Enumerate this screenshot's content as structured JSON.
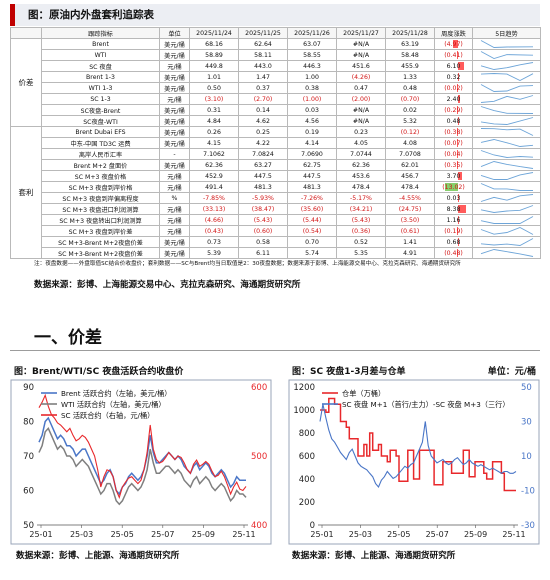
{
  "header": {
    "title": "图：原油内外盘套利追踪表"
  },
  "table": {
    "columns": [
      "跟踪指标",
      "单位",
      "2025/11/24",
      "2025/11/25",
      "2025/11/26",
      "2025/11/27",
      "2025/11/28",
      "周度涨跌",
      "5日趋势"
    ],
    "groups": {
      "price": "价差",
      "arb": "套利"
    },
    "rows": [
      {
        "name": "Brent",
        "unit": "美元/桶",
        "v": [
          "68.16",
          "62.64",
          "63.07",
          "#N/A",
          "63.19"
        ],
        "wow": "(4.97)",
        "wow_pct": -4.97
      },
      {
        "name": "WTI",
        "unit": "美元/桶",
        "v": [
          "58.89",
          "58.11",
          "58.55",
          "#N/A",
          "58.48"
        ],
        "wow": "(0.41)",
        "wow_pct": -0.41
      },
      {
        "name": "SC 夜盘",
        "unit": "元/桶",
        "v": [
          "449.8",
          "443.0",
          "446.3",
          "451.6",
          "455.9"
        ],
        "wow": "6.10",
        "wow_pct": 6.1
      },
      {
        "name": "Brent 1-3",
        "unit": "美元/桶",
        "v": [
          "1.01",
          "1.47",
          "1.00",
          "(4.26)",
          "1.33"
        ],
        "wow": "0.32",
        "wow_pct": 0.32
      },
      {
        "name": "WTI 1-3",
        "unit": "美元/桶",
        "v": [
          "0.50",
          "0.37",
          "0.38",
          "0.47",
          "0.48"
        ],
        "wow": "(0.02)",
        "wow_pct": -0.02
      },
      {
        "name": "SC 1-3",
        "unit": "元/桶",
        "v": [
          "(3.10)",
          "(2.70)",
          "(1.00)",
          "(2.00)",
          "(0.70)"
        ],
        "wow": "2.40",
        "wow_pct": 2.4
      },
      {
        "name": "SC夜盘-Brent",
        "unit": "美元/桶",
        "v": [
          "0.31",
          "0.14",
          "0.03",
          "#N/A",
          "0.02"
        ],
        "wow": "(0.29)",
        "wow_pct": -0.29
      },
      {
        "name": "SC夜盘-WTI",
        "unit": "美元/桶",
        "v": [
          "4.84",
          "4.62",
          "4.56",
          "#N/A",
          "5.32"
        ],
        "wow": "0.48",
        "wow_pct": 0.48
      },
      {
        "name": "Brent Dubai EFS",
        "unit": "美元/桶",
        "v": [
          "0.26",
          "0.25",
          "0.19",
          "0.23",
          "(0.12)"
        ],
        "wow": "(0.38)",
        "wow_pct": -0.38
      },
      {
        "name": "中东-中国 TD3C 运费",
        "unit": "美元/桶",
        "v": [
          "4.15",
          "4.22",
          "4.14",
          "4.05",
          "4.08"
        ],
        "wow": "(0.07)",
        "wow_pct": -0.07
      },
      {
        "name": "离岸人民币汇率",
        "unit": "-",
        "v": [
          "7.1062",
          "7.0824",
          "7.0690",
          "7.0744",
          "7.0708"
        ],
        "wow": "(0.04)",
        "wow_pct": -0.04
      },
      {
        "name": "Brent M+2 盘面价",
        "unit": "美元/桶",
        "v": [
          "62.36",
          "63.27",
          "62.75",
          "62.36",
          "62.01"
        ],
        "wow": "(0.35)",
        "wow_pct": -0.35
      },
      {
        "name": "SC M+3 夜盘价格",
        "unit": "元/桶",
        "v": [
          "452.9",
          "447.5",
          "447.5",
          "453.6",
          "456.7"
        ],
        "wow": "3.70",
        "wow_pct": 3.7
      },
      {
        "name": "SC M+3 夜盘到岸价格",
        "unit": "元/桶",
        "v": [
          "491.4",
          "481.3",
          "481.3",
          "478.4",
          "478.4"
        ],
        "wow": "(13.02)",
        "wow_pct": -13.02
      },
      {
        "name": "SC M+3 夜盘到岸偏离程度",
        "unit": "%",
        "v": [
          "-7.85%",
          "-5.93%",
          "-7.26%",
          "-5.17%",
          "-4.55%"
        ],
        "wow": "0.03",
        "wow_pct": 0.03
      },
      {
        "name": "SC M+3 夜盘进口利润测算",
        "unit": "元/桶",
        "v": [
          "(33.13)",
          "(38.47)",
          "(35.60)",
          "(34.21)",
          "(24.75)"
        ],
        "wow": "8.38",
        "wow_pct": 8.38
      },
      {
        "name": "SC M+3 夜盘转出口利润测算",
        "unit": "元/桶",
        "v": [
          "(4.66)",
          "(5.43)",
          "(5.44)",
          "(5.43)",
          "(3.50)"
        ],
        "wow": "1.16",
        "wow_pct": 1.16
      },
      {
        "name": "SC M+3 夜盘到岸价差",
        "unit": "元/桶",
        "v": [
          "(0.43)",
          "(0.60)",
          "(0.54)",
          "(0.36)",
          "(0.61)"
        ],
        "wow": "(0.19)",
        "wow_pct": -0.19
      },
      {
        "name": "SC M+3-Brent M+2夜盘价差",
        "unit": "美元/桶",
        "v": [
          "0.73",
          "0.58",
          "0.70",
          "0.52",
          "1.41"
        ],
        "wow": "0.68",
        "wow_pct": 0.68
      },
      {
        "name": "SC M+3-Brent M+2夜盘价差",
        "unit": "美元/桶",
        "v": [
          "5.39",
          "6.11",
          "5.74",
          "5.35",
          "4.91"
        ],
        "wow": "(0.48)",
        "wow_pct": -0.48
      }
    ]
  },
  "footnote": "注：夜盘数据——外盘取值SC结合价收盘价；套利数据——SC与Brent均当日取值是2：30夜盘数据；数据来源于彭博、上海能源交易中心、克拉克森研究、海通期货研究所",
  "source_top": "数据来源：彭博、上海能源交易中心、克拉克森研究、海通期货研究所",
  "section_heading": "一、价差",
  "charts": {
    "left_title": "图：Brent/WTI/SC 夜盘活跃合约收盘价",
    "right_title": "图：SC 夜盘1-3月差与仓单",
    "right_unit": "单位：元/桶",
    "left_source": "数据来源：彭博、上能源、海通期货研究所",
    "right_source": "数据来源：彭博、上能源、海通期货研究所"
  },
  "chart_data": [
    {
      "type": "line",
      "legend_position": "top-left",
      "x_ticks": [
        "25-01",
        "25-03",
        "25-05",
        "25-07",
        "25-09",
        "25-11"
      ],
      "y_left": {
        "range": [
          50,
          90
        ],
        "ticks": [
          50,
          60,
          70,
          80,
          90
        ]
      },
      "y_right": {
        "range": [
          400,
          600
        ],
        "ticks": [
          400,
          500,
          600
        ]
      },
      "series": [
        {
          "name": "Brent 活跃合约（左轴，美元/桶）",
          "axis": "left",
          "color": "#4a76c7",
          "values": [
            74,
            76,
            80,
            81,
            79,
            77,
            75,
            76,
            75,
            73,
            73,
            72,
            70,
            71,
            72,
            72,
            70,
            68,
            66,
            64,
            62,
            63,
            65,
            66,
            64,
            60,
            59,
            61,
            62,
            64,
            65,
            64,
            63,
            64,
            66,
            70,
            76,
            71,
            68,
            68,
            69,
            70,
            71,
            70,
            69,
            70,
            69,
            67,
            66,
            65,
            67,
            68,
            66,
            67,
            68,
            67,
            65,
            64,
            65,
            66,
            65,
            63,
            61,
            62,
            64,
            63,
            63,
            63
          ]
        },
        {
          "name": "WTI 活跃合约（左轴，美元/桶）",
          "axis": "left",
          "color": "#7f7f7f",
          "values": [
            71,
            73,
            77,
            78,
            76,
            74,
            72,
            73,
            72,
            70,
            70,
            69,
            67,
            68,
            69,
            68,
            67,
            65,
            63,
            61,
            59,
            60,
            62,
            62,
            60,
            57,
            56,
            57,
            59,
            61,
            62,
            61,
            60,
            61,
            63,
            66,
            72,
            68,
            65,
            65,
            66,
            67,
            67,
            66,
            65,
            66,
            65,
            63,
            62,
            61,
            63,
            64,
            62,
            63,
            64,
            63,
            61,
            60,
            61,
            62,
            61,
            59,
            57,
            58,
            60,
            59,
            59,
            58
          ]
        },
        {
          "name": "SC 活跃合约（右轴，元/桶）",
          "axis": "right",
          "color": "#e8282b",
          "values": [
            570,
            578,
            588,
            572,
            560,
            555,
            548,
            545,
            540,
            535,
            540,
            530,
            522,
            525,
            530,
            527,
            520,
            510,
            500,
            480,
            455,
            470,
            480,
            478,
            470,
            450,
            440,
            455,
            462,
            468,
            470,
            465,
            460,
            465,
            480,
            505,
            545,
            510,
            495,
            490,
            492,
            498,
            505,
            500,
            495,
            500,
            498,
            490,
            480,
            475,
            488,
            494,
            485,
            488,
            492,
            488,
            478,
            470,
            472,
            478,
            470,
            458,
            445,
            455,
            462,
            452,
            450,
            456
          ]
        }
      ]
    },
    {
      "type": "line",
      "legend_position": "top-left",
      "x_ticks": [
        "25-01",
        "25-03",
        "25-05",
        "25-07",
        "25-09",
        "25-11"
      ],
      "y_left": {
        "range": [
          0,
          1200
        ],
        "ticks": [
          0,
          200,
          400,
          600,
          800,
          1000,
          1200
        ]
      },
      "y_right": {
        "range": [
          -30,
          50
        ],
        "ticks": [
          -30,
          -10,
          10,
          30,
          50
        ]
      },
      "series": [
        {
          "name": "仓单（万桶）",
          "axis": "left",
          "color": "#e8282b",
          "values": [
            1000,
            1000,
            980,
            1100,
            1100,
            1050,
            1050,
            900,
            900,
            850,
            750,
            750,
            750,
            600,
            600,
            700,
            600,
            800,
            650,
            650,
            700,
            600,
            600,
            550,
            650,
            650,
            600,
            380,
            380,
            380,
            650,
            650,
            400,
            400,
            650,
            650,
            650,
            650,
            650,
            350,
            350,
            350,
            550,
            550,
            550,
            450,
            450,
            450,
            450,
            650,
            650,
            420,
            420,
            550,
            550,
            550,
            450,
            400,
            400,
            550,
            550,
            550,
            450,
            300,
            300,
            300,
            300,
            300
          ]
        },
        {
          "name": "SC 夜盘 M+1（首行/主力）-SC 夜盘 M+3（三行）",
          "axis": "right",
          "color": "#4a76c7",
          "values": [
            30,
            40,
            32,
            25,
            20,
            18,
            15,
            12,
            10,
            8,
            12,
            14,
            10,
            6,
            4,
            3,
            2,
            0,
            -2,
            -6,
            -8,
            -4,
            -2,
            1,
            -1,
            -3,
            -2,
            0,
            2,
            4,
            3,
            5,
            6,
            10,
            14,
            18,
            30,
            16,
            10,
            8,
            6,
            7,
            8,
            6,
            5,
            6,
            8,
            9,
            7,
            5,
            6,
            8,
            6,
            5,
            4,
            5,
            4,
            3,
            2,
            3,
            2,
            1,
            0,
            1,
            1,
            0,
            0,
            1
          ]
        }
      ]
    }
  ],
  "colors": {
    "accent": "#c00000",
    "up_bar": "#ff5b5b",
    "down_bar": "#86d06d",
    "negative_text": "#d21414",
    "spark": "#6ea5d8"
  }
}
